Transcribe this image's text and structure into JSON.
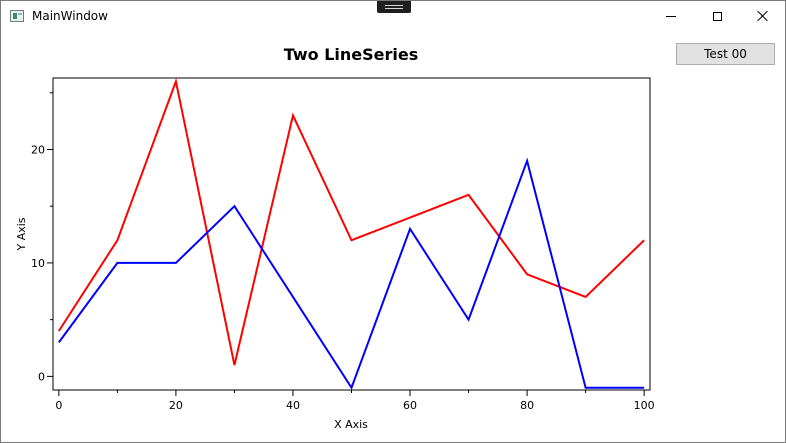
{
  "window": {
    "title": "MainWindow",
    "app_icon": "window-app-icon",
    "controls": {
      "minimize_icon": "minimize-icon",
      "maximize_icon": "maximize-icon",
      "close_icon": "close-icon"
    }
  },
  "toolbar": {
    "test_button_label": "Test 00"
  },
  "chart_data": {
    "type": "line",
    "title": "Two LineSeries",
    "xlabel": "X Axis",
    "ylabel": "Y Axis",
    "xlim": [
      -1,
      101
    ],
    "ylim": [
      -1.2,
      26.3
    ],
    "xticks": [
      0,
      20,
      40,
      60,
      80,
      100
    ],
    "xticks_minor": [
      10,
      30,
      50,
      70,
      90
    ],
    "yticks": [
      0,
      10,
      20
    ],
    "yticks_minor": [
      5,
      15,
      25
    ],
    "x": [
      0,
      10,
      20,
      30,
      40,
      50,
      60,
      70,
      80,
      90,
      100
    ],
    "grid": false,
    "series": [
      {
        "color": "#ff0000",
        "values": [
          4,
          12,
          26,
          1,
          23,
          12,
          14,
          16,
          9,
          7,
          12
        ]
      },
      {
        "color": "#0000ff",
        "values": [
          3,
          10,
          10,
          15,
          7,
          -1,
          13,
          5,
          19,
          -1,
          -1
        ]
      }
    ]
  }
}
